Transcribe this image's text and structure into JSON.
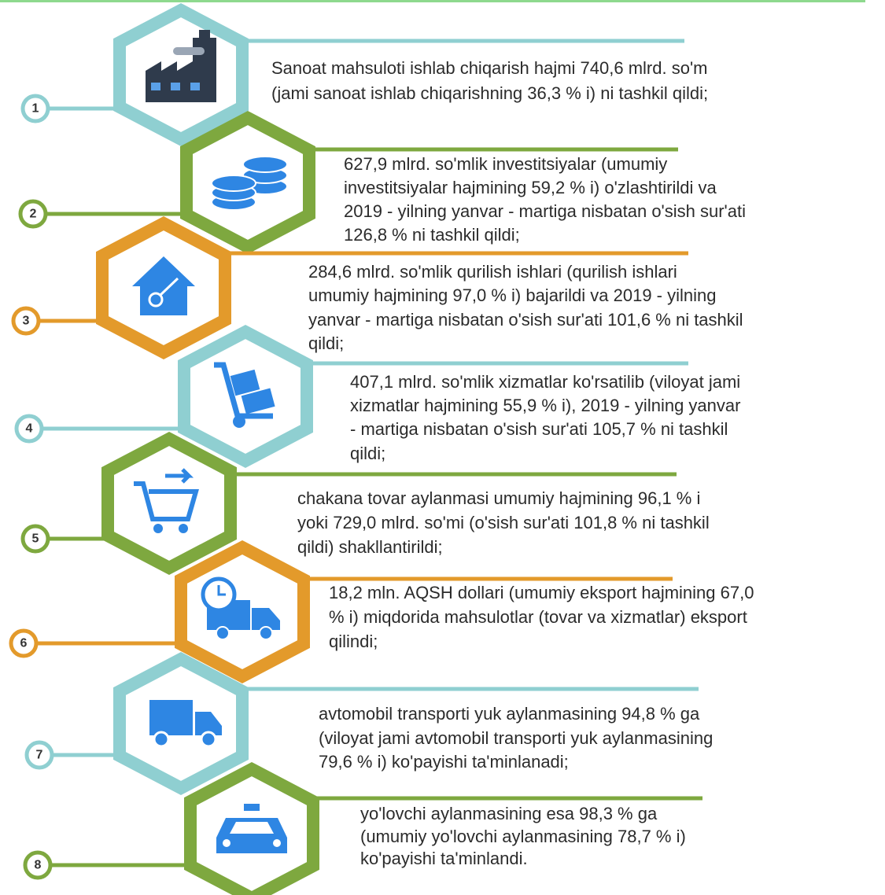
{
  "items": [
    {
      "number": "1",
      "lines": [
        "Sanoat mahsuloti ishlab chiqarish hajmi 740,6 mlrd. so'm",
        "(jami sanoat ishlab chiqarishning 36,3 % i) ni tashkil qildi;"
      ]
    },
    {
      "number": "2",
      "lines": [
        "627,9 mlrd. so'mlik investitsiyalar (umumiy",
        "investitsiyalar hajmining 59,2 % i) o'zlashtirildi va",
        "2019 - yilning yanvar - martiga nisbatan o'sish sur'ati",
        "126,8 % ni tashkil qildi;"
      ]
    },
    {
      "number": "3",
      "lines": [
        "284,6 mlrd. so'mlik  qurilish  ishlari  (qurilish  ishlari",
        "umumiy hajmining 97,0 % i) bajarildi va 2019 - yilning",
        "yanvar - martiga nisbatan o'sish sur'ati 101,6 % ni tashkil",
        "qildi;"
      ]
    },
    {
      "number": "4",
      "lines": [
        "407,1 mlrd. so'mlik xizmatlar ko'rsatilib (viloyat jami",
        "xizmatlar hajmining 55,9 % i), 2019 - yilning yanvar",
        "- martiga nisbatan o'sish sur'ati 105,7 % ni tashkil",
        "qildi;"
      ]
    },
    {
      "number": "5",
      "lines": [
        "chakana tovar aylanmasi umumiy hajmining 96,1 % i",
        "yoki 729,0 mlrd. so'mi (o'sish sur'ati  101,8 % ni tashkil",
        "qildi) shakllantirildi;"
      ]
    },
    {
      "number": "6",
      "lines": [
        "18,2 mln. AQSH dollari (umumiy eksport hajmining 67,0",
        "% i) miqdorida mahsulotlar (tovar va xizmatlar) eksport",
        "qilindi;"
      ]
    },
    {
      "number": "7",
      "lines": [
        "avtomobil transporti yuk aylanmasining 94,8 % ga",
        "(viloyat jami avtomobil transporti yuk aylanmasining",
        "79,6 % i) ko'payishi ta'minlanadi;"
      ]
    },
    {
      "number": "8",
      "lines": [
        "yo'lovchi  aylanmasining  esa 98,3 % ga",
        "(umumiy  yo'lovchi aylanmasining 78,7 % i)",
        "ko'payishi ta'minlandi."
      ]
    }
  ]
}
